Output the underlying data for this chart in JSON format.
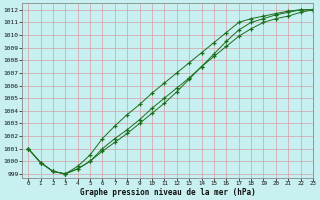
{
  "title": "Graphe pression niveau de la mer (hPa)",
  "background_color": "#c8f0f0",
  "grid_color": "#d4a0a8",
  "line_color": "#1a6e1a",
  "xlim": [
    -0.5,
    23
  ],
  "ylim": [
    998.7,
    1012.5
  ],
  "yticks": [
    999,
    1000,
    1001,
    1002,
    1003,
    1004,
    1005,
    1006,
    1007,
    1008,
    1009,
    1010,
    1011,
    1012
  ],
  "xticks": [
    0,
    1,
    2,
    3,
    4,
    5,
    6,
    7,
    8,
    9,
    10,
    11,
    12,
    13,
    14,
    15,
    16,
    17,
    18,
    19,
    20,
    21,
    22,
    23
  ],
  "line1_x": [
    0,
    1,
    2,
    3,
    4,
    5,
    6,
    7,
    8,
    9,
    10,
    11,
    12,
    13,
    14,
    15,
    16,
    17,
    18,
    19,
    20,
    21,
    22,
    23
  ],
  "line1_y": [
    1001.0,
    999.9,
    999.2,
    999.0,
    999.4,
    1000.0,
    1001.0,
    1001.8,
    1002.5,
    1003.3,
    1004.2,
    1005.0,
    1005.8,
    1006.6,
    1007.5,
    1008.3,
    1009.1,
    1009.9,
    1010.5,
    1011.0,
    1011.3,
    1011.5,
    1011.8,
    1012.0
  ],
  "line2_x": [
    0,
    1,
    2,
    3,
    4,
    5,
    6,
    7,
    8,
    9,
    10,
    11,
    12,
    13,
    14,
    15,
    16,
    17,
    18,
    19,
    20,
    21,
    22,
    23
  ],
  "line2_y": [
    1001.0,
    999.9,
    999.2,
    999.0,
    999.6,
    1000.5,
    1001.8,
    1002.8,
    1003.7,
    1004.5,
    1005.4,
    1006.2,
    1007.0,
    1007.8,
    1008.6,
    1009.4,
    1010.2,
    1011.0,
    1011.3,
    1011.5,
    1011.7,
    1011.9,
    1012.0,
    1012.0
  ],
  "line3_x": [
    0,
    1,
    2,
    3,
    4,
    5,
    6,
    7,
    8,
    9,
    10,
    11,
    12,
    13,
    14,
    15,
    16,
    17,
    18,
    19,
    20,
    21,
    22,
    23
  ],
  "line3_y": [
    1001.0,
    999.9,
    999.2,
    999.0,
    999.4,
    1000.0,
    1000.8,
    1001.5,
    1002.2,
    1003.0,
    1003.8,
    1004.6,
    1005.5,
    1006.5,
    1007.5,
    1008.5,
    1009.5,
    1010.4,
    1011.0,
    1011.3,
    1011.6,
    1011.8,
    1012.0,
    1012.0
  ]
}
